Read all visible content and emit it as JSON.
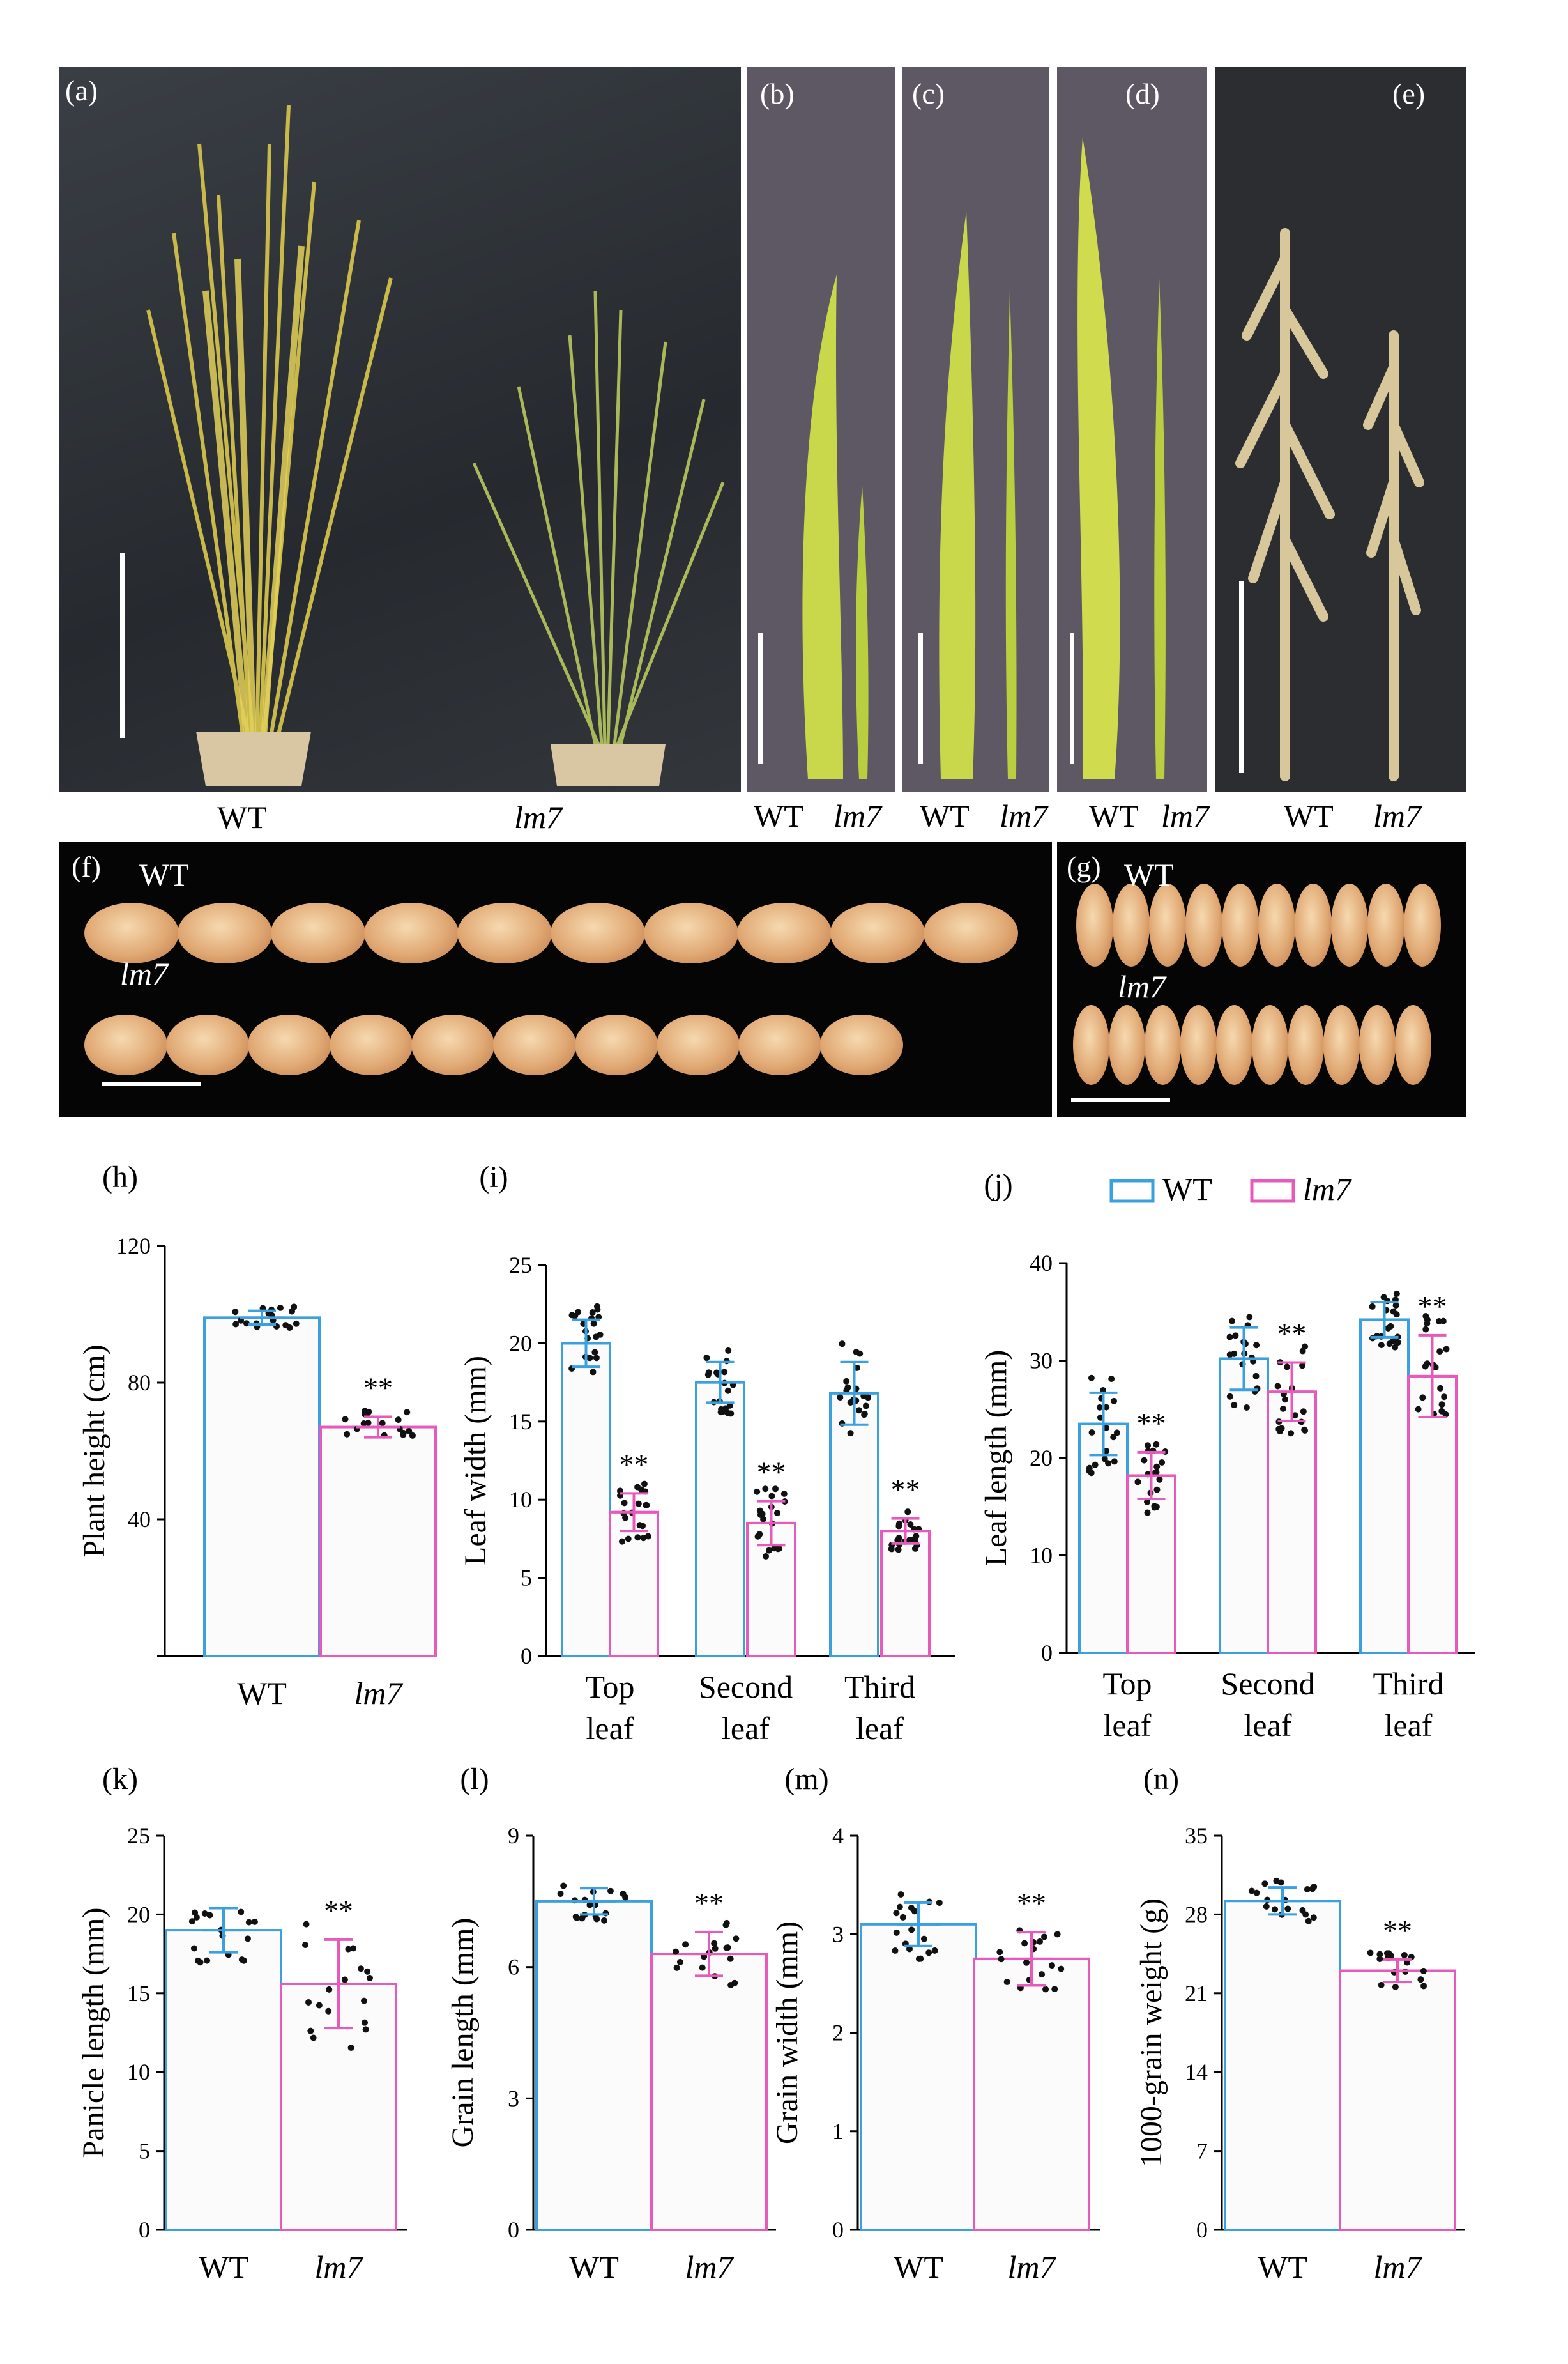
{
  "panels": {
    "a": {
      "label": "(a)",
      "captions": [
        "WT",
        "lm7"
      ]
    },
    "b": {
      "label": "(b)",
      "captions": [
        "WT",
        "lm7"
      ]
    },
    "c": {
      "label": "(c)",
      "captions": [
        "WT",
        "lm7"
      ]
    },
    "d": {
      "label": "(d)",
      "captions": [
        "WT",
        "lm7"
      ]
    },
    "e": {
      "label": "(e)",
      "captions": [
        "WT",
        "lm7"
      ]
    },
    "f": {
      "label": "(f)",
      "row1": "WT",
      "row2": "lm7"
    },
    "g": {
      "label": "(g)",
      "row1": "WT",
      "row2": "lm7"
    }
  },
  "colors": {
    "wt": "#3aa0e0",
    "lm7": "#e85aba",
    "photo_bg_a": "#2e3338",
    "photo_bg_leaf": "#5c5662",
    "grain_bg": "#050505"
  },
  "chart_data": [
    {
      "id": "h",
      "label": "(h)",
      "type": "bar",
      "categories": [
        "WT",
        "lm7"
      ],
      "values": [
        99,
        67
      ],
      "errors": [
        2,
        3
      ],
      "ylabel": "Plant height  (cm)",
      "ylim": [
        0,
        120
      ],
      "yticks": [
        "",
        "40",
        "80",
        "120"
      ],
      "significance": [
        "",
        "**"
      ]
    },
    {
      "id": "i",
      "label": "(i)",
      "type": "bar",
      "categories": [
        "Top leaf",
        "Second leaf",
        "Third leaf"
      ],
      "series": [
        {
          "name": "WT",
          "values": [
            20,
            17.5,
            16.8
          ],
          "errors": [
            1.5,
            1.3,
            2
          ]
        },
        {
          "name": "lm7",
          "values": [
            9.2,
            8.5,
            8
          ],
          "errors": [
            1.2,
            1.4,
            0.8
          ]
        }
      ],
      "ylabel": "Leaf  width (mm)",
      "ylim": [
        0,
        25
      ],
      "yticks": [
        "0",
        "5",
        "10",
        "15",
        "20",
        "25"
      ],
      "significance": [
        "**",
        "**",
        "**"
      ]
    },
    {
      "id": "j",
      "label": "(j)",
      "type": "bar",
      "categories": [
        "Top leaf",
        "Second leaf",
        "Third leaf"
      ],
      "series": [
        {
          "name": "WT",
          "values": [
            23.5,
            30.2,
            34.2
          ],
          "errors": [
            3.2,
            3.2,
            1.8
          ]
        },
        {
          "name": "lm7",
          "values": [
            18.2,
            26.8,
            28.4
          ],
          "errors": [
            2.4,
            3,
            4.2
          ]
        }
      ],
      "ylabel": "Leaf  length (mm)",
      "ylim": [
        0,
        40
      ],
      "yticks": [
        "0",
        "10",
        "20",
        "30",
        "40"
      ],
      "significance": [
        "**",
        "**",
        "**"
      ],
      "legend": [
        "WT",
        "lm7"
      ]
    },
    {
      "id": "k",
      "label": "(k)",
      "type": "bar",
      "categories": [
        "WT",
        "lm7"
      ],
      "values": [
        19,
        15.6
      ],
      "errors": [
        1.4,
        2.8
      ],
      "ylabel": "Panicle length (mm)",
      "ylim": [
        0,
        25
      ],
      "yticks": [
        "0",
        "5",
        "10",
        "15",
        "20",
        "25"
      ],
      "significance": [
        "",
        "**"
      ]
    },
    {
      "id": "l",
      "label": "(l)",
      "type": "bar",
      "categories": [
        "WT",
        "lm7"
      ],
      "values": [
        7.5,
        6.3
      ],
      "errors": [
        0.3,
        0.5
      ],
      "ylabel": "Grain length (mm)",
      "ylim": [
        0,
        9
      ],
      "yticks": [
        "0",
        "3",
        "6",
        "9"
      ],
      "significance": [
        "",
        "**"
      ]
    },
    {
      "id": "m",
      "label": "(m)",
      "type": "bar",
      "categories": [
        "WT",
        "lm7"
      ],
      "values": [
        3.1,
        2.75
      ],
      "errors": [
        0.22,
        0.27
      ],
      "ylabel": "Grain width (mm)",
      "ylim": [
        0,
        4
      ],
      "yticks": [
        "0",
        "1",
        "2",
        "3",
        "4"
      ],
      "significance": [
        "",
        "**"
      ]
    },
    {
      "id": "n",
      "label": "(n)",
      "type": "bar",
      "categories": [
        "WT",
        "lm7"
      ],
      "values": [
        29.2,
        23
      ],
      "errors": [
        1.2,
        1
      ],
      "ylabel": "1000-grain weight (g)",
      "ylim": [
        0,
        35
      ],
      "yticks": [
        "0",
        "7",
        "14",
        "21",
        "28",
        "35"
      ],
      "significance": [
        "",
        "**"
      ]
    }
  ]
}
